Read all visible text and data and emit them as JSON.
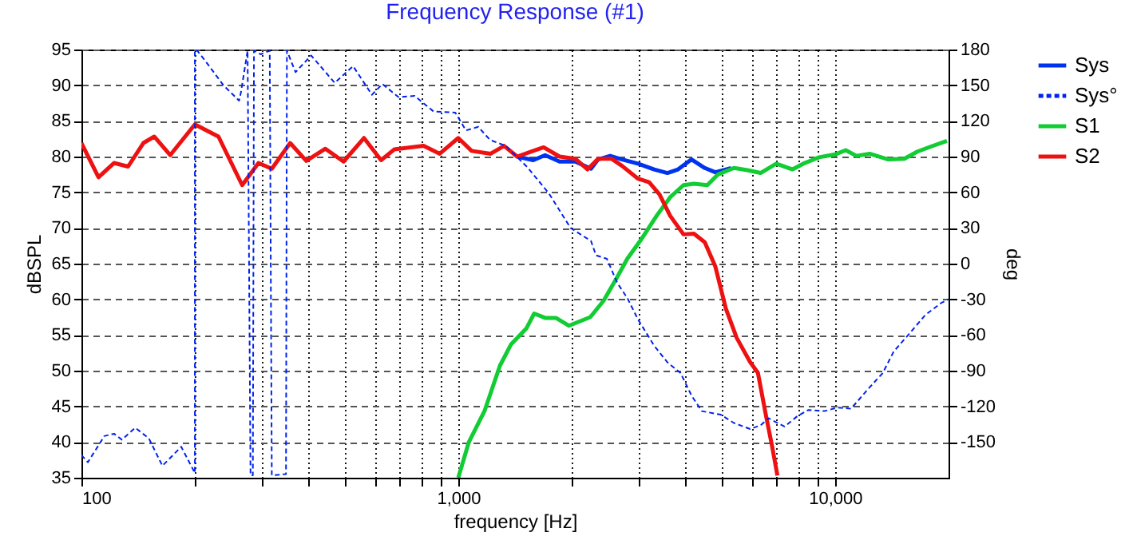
{
  "chart_data": {
    "type": "line",
    "title": "Frequency Response (#1)",
    "xlabel": "frequency [Hz]",
    "ylabel": "dBSPL",
    "y2label": "deg",
    "log": "x",
    "grid": true,
    "legend": "top right",
    "xlim": [
      100,
      20000
    ],
    "xticks": [
      100,
      {
        "value": 200,
        "label": null
      },
      {
        "value": 300,
        "label": null
      },
      {
        "value": 400,
        "label": null
      },
      {
        "value": 500,
        "label": null
      },
      {
        "value": 600,
        "label": null
      },
      {
        "value": 700,
        "label": null
      },
      {
        "value": 800,
        "label": null
      },
      {
        "value": 900,
        "label": null
      },
      {
        "value": 1000,
        "label": "1,000"
      },
      {
        "value": 2000,
        "label": null
      },
      {
        "value": 3000,
        "label": null
      },
      {
        "value": 4000,
        "label": null
      },
      {
        "value": 5000,
        "label": null
      },
      {
        "value": 6000,
        "label": null
      },
      {
        "value": 7000,
        "label": null
      },
      {
        "value": 8000,
        "label": null
      },
      {
        "value": 9000,
        "label": null
      },
      {
        "value": 10000,
        "label": "10,000"
      }
    ],
    "ylim": [
      35,
      95
    ],
    "yticks": [
      35,
      40,
      45,
      50,
      55,
      60,
      65,
      70,
      75,
      80,
      85,
      90,
      95
    ],
    "y2lim": [
      -180,
      180
    ],
    "y2ticks": [
      -150,
      -120,
      -90,
      -60,
      -30,
      0,
      30,
      60,
      90,
      120,
      150,
      180
    ],
    "series": [
      {
        "name": "Sys",
        "color": "#0033ee",
        "x": [
          1433,
          1581,
          1700,
          1857,
          2044,
          2250,
          2350,
          2530,
          2720,
          3000,
          3310,
          3590,
          3830,
          4160,
          4510,
          4810,
          5300
        ],
        "values": [
          80.0,
          79.5,
          80.2,
          79.3,
          79.3,
          78.3,
          79.6,
          80.1,
          79.6,
          79.0,
          78.2,
          77.7,
          78.2,
          79.6,
          78.4,
          77.8,
          78.4
        ]
      },
      {
        "name": "Sys°",
        "color": "#0022ee",
        "axis": "y2",
        "line_style": "dashed",
        "x": [
          100,
          104,
          115,
          122,
          128,
          139,
          151,
          164,
          184,
          200,
          200,
          203,
          216,
          238,
          262,
          265,
          276,
          281,
          285,
          287,
          299,
          316,
          320,
          349,
          351,
          370,
          407,
          470,
          526,
          590,
          629,
          694,
          766,
          859,
          982,
          1048,
          1130,
          1214,
          1338,
          1526,
          1740,
          1986,
          2250,
          2320,
          2480,
          2640,
          2810,
          3000,
          3310,
          3590,
          3890,
          4160,
          4430,
          4970,
          5390,
          5950,
          6340,
          6660,
          7340,
          7960,
          8500,
          9370,
          10160,
          11020,
          12350,
          13380,
          14300,
          15530,
          17380,
          19140,
          20000
        ],
        "values": [
          -161,
          -167,
          -145,
          -143,
          -148,
          -138,
          -147,
          -170,
          -154,
          -176,
          180,
          179,
          168,
          150,
          137,
          144,
          179,
          -178,
          -178,
          179,
          176,
          179,
          -178,
          -177,
          179,
          161,
          175,
          152,
          166,
          142,
          151,
          140,
          141,
          128,
          127,
          112,
          115,
          104,
          99,
          81,
          59,
          30,
          19,
          7,
          4,
          -16,
          -29,
          -47,
          -69,
          -83,
          -92,
          -111,
          -124,
          -127,
          -134,
          -139,
          -136,
          -130,
          -137,
          -128,
          -123,
          -124,
          -121,
          -122,
          -104,
          -92,
          -74,
          -61,
          -43,
          -33,
          -30
        ]
      },
      {
        "name": "S1",
        "color": "#11cc33",
        "x": [
          1000,
          1067,
          1175,
          1290,
          1381,
          1515,
          1590,
          1700,
          1815,
          1965,
          2240,
          2430,
          2640,
          2810,
          3050,
          3360,
          3650,
          3960,
          4220,
          4580,
          4890,
          5390,
          5850,
          6340,
          6980,
          7710,
          8230,
          9070,
          10000,
          10670,
          11390,
          12350,
          13840,
          15260,
          16540,
          17950,
          19800
        ],
        "values": [
          35.0,
          40.0,
          44.4,
          50.7,
          53.7,
          55.9,
          58.0,
          57.4,
          57.4,
          56.3,
          57.5,
          59.8,
          63.1,
          65.7,
          68.3,
          71.7,
          74.3,
          76.0,
          76.2,
          76.0,
          77.5,
          78.4,
          78.1,
          77.7,
          79.0,
          78.2,
          79.0,
          79.9,
          80.3,
          80.9,
          80.1,
          80.4,
          79.6,
          79.7,
          80.7,
          81.4,
          82.2
        ]
      },
      {
        "name": "S2",
        "color": "#ee1111",
        "x": [
          100,
          111,
          122,
          133,
          146,
          156,
          172,
          200,
          231,
          267,
          295,
          320,
          358,
          395,
          444,
          496,
          562,
          624,
          676,
          809,
          893,
          1000,
          1085,
          1219,
          1323,
          1433,
          1581,
          1685,
          1857,
          2044,
          2203,
          2350,
          2550,
          2720,
          3000,
          3210,
          3420,
          3650,
          3960,
          4220,
          4510,
          4810,
          5130,
          5480,
          5950,
          6240,
          6550,
          6810,
          7030
        ],
        "values": [
          81.9,
          77.1,
          79.1,
          78.6,
          81.9,
          82.8,
          80.2,
          84.5,
          82.8,
          76.0,
          79.1,
          78.3,
          81.9,
          79.4,
          81.1,
          79.3,
          82.6,
          79.5,
          81.0,
          81.5,
          80.4,
          82.6,
          80.8,
          80.4,
          81.5,
          80.0,
          80.8,
          81.3,
          80.0,
          79.7,
          78.2,
          79.7,
          79.7,
          78.7,
          76.9,
          76.4,
          74.7,
          71.7,
          69.1,
          69.2,
          68.0,
          64.6,
          58.7,
          54.6,
          51.2,
          49.7,
          43.8,
          39.3,
          35.3
        ]
      }
    ]
  }
}
